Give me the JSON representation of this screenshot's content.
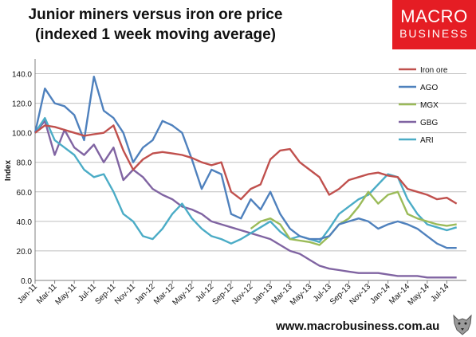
{
  "title_lines": [
    "Junior miners versus iron ore price",
    "(indexed 1 week moving average)"
  ],
  "logo": {
    "line1": "MACRO",
    "line2": "BUSINESS"
  },
  "footer": "www.macrobusiness.com.au",
  "colors": {
    "Iron ore": "#c0504d",
    "AGO": "#4f81bd",
    "MGX": "#9bbb59",
    "GBG": "#8064a2",
    "ARI": "#4bacc6",
    "logo_bg": "#e51d24"
  },
  "chart_data": {
    "type": "line",
    "title": "Junior miners versus iron ore price (indexed 1 week moving average)",
    "ylabel": "Index",
    "xlabel": "",
    "ylim": [
      0,
      150
    ],
    "yticks": [
      "0.0",
      "20.0",
      "40.0",
      "60.0",
      "80.0",
      "100.0",
      "120.0",
      "140.0"
    ],
    "ytick_values": [
      0,
      20,
      40,
      60,
      80,
      100,
      120,
      140
    ],
    "xlim": [
      "2011-01",
      "2014-09"
    ],
    "xticks": [
      "Jan-11",
      "Mar-11",
      "May-11",
      "Jul-11",
      "Sep-11",
      "Nov-11",
      "Jan-12",
      "Mar-12",
      "May-12",
      "Jul-12",
      "Sep-12",
      "Nov-12",
      "Jan-13",
      "Mar-13",
      "May-13",
      "Jul-13",
      "Sep-13",
      "Nov-13",
      "Jan-14",
      "Mar-14",
      "May-14",
      "Jul-14"
    ],
    "grid": true,
    "legend": "top-right",
    "series": [
      {
        "name": "Iron ore",
        "x": [
          "2011-01",
          "2011-02",
          "2011-03",
          "2011-04",
          "2011-05",
          "2011-06",
          "2011-07",
          "2011-08",
          "2011-09",
          "2011-10",
          "2011-11",
          "2011-12",
          "2012-01",
          "2012-02",
          "2012-03",
          "2012-04",
          "2012-05",
          "2012-06",
          "2012-07",
          "2012-08",
          "2012-09",
          "2012-10",
          "2012-11",
          "2012-12",
          "2013-01",
          "2013-02",
          "2013-03",
          "2013-04",
          "2013-05",
          "2013-06",
          "2013-07",
          "2013-08",
          "2013-09",
          "2013-10",
          "2013-11",
          "2013-12",
          "2014-01",
          "2014-02",
          "2014-03",
          "2014-04",
          "2014-05",
          "2014-06",
          "2014-07",
          "2014-08"
        ],
        "values": [
          100,
          105,
          104,
          102,
          100,
          98,
          99,
          100,
          105,
          88,
          75,
          82,
          86,
          87,
          86,
          85,
          83,
          80,
          78,
          80,
          60,
          55,
          62,
          65,
          82,
          88,
          89,
          80,
          75,
          70,
          58,
          62,
          68,
          70,
          72,
          73,
          71,
          70,
          62,
          60,
          58,
          55,
          56,
          52
        ]
      },
      {
        "name": "AGO",
        "x": [
          "2011-01",
          "2011-02",
          "2011-03",
          "2011-04",
          "2011-05",
          "2011-06",
          "2011-07",
          "2011-08",
          "2011-09",
          "2011-10",
          "2011-11",
          "2011-12",
          "2012-01",
          "2012-02",
          "2012-03",
          "2012-04",
          "2012-05",
          "2012-06",
          "2012-07",
          "2012-08",
          "2012-09",
          "2012-10",
          "2012-11",
          "2012-12",
          "2013-01",
          "2013-02",
          "2013-03",
          "2013-04",
          "2013-05",
          "2013-06",
          "2013-07",
          "2013-08",
          "2013-09",
          "2013-10",
          "2013-11",
          "2013-12",
          "2014-01",
          "2014-02",
          "2014-03",
          "2014-04",
          "2014-05",
          "2014-06",
          "2014-07",
          "2014-08"
        ],
        "values": [
          100,
          130,
          120,
          118,
          112,
          95,
          138,
          115,
          110,
          100,
          80,
          90,
          95,
          108,
          105,
          100,
          82,
          62,
          75,
          72,
          45,
          42,
          55,
          48,
          60,
          45,
          35,
          30,
          28,
          28,
          30,
          38,
          40,
          42,
          40,
          35,
          38,
          40,
          38,
          35,
          30,
          25,
          22,
          22
        ]
      },
      {
        "name": "MGX",
        "x": [
          "2012-11",
          "2012-12",
          "2013-01",
          "2013-02",
          "2013-03",
          "2013-04",
          "2013-05",
          "2013-06",
          "2013-07",
          "2013-08",
          "2013-09",
          "2013-10",
          "2013-11",
          "2013-12",
          "2014-01",
          "2014-02",
          "2014-03",
          "2014-04",
          "2014-05",
          "2014-06",
          "2014-07",
          "2014-08"
        ],
        "values": [
          35,
          40,
          42,
          38,
          28,
          27,
          26,
          24,
          30,
          38,
          42,
          50,
          60,
          52,
          58,
          60,
          45,
          42,
          40,
          38,
          37,
          38
        ]
      },
      {
        "name": "GBG",
        "x": [
          "2011-01",
          "2011-02",
          "2011-03",
          "2011-04",
          "2011-05",
          "2011-06",
          "2011-07",
          "2011-08",
          "2011-09",
          "2011-10",
          "2011-11",
          "2011-12",
          "2012-01",
          "2012-02",
          "2012-03",
          "2012-04",
          "2012-05",
          "2012-06",
          "2012-07",
          "2012-08",
          "2012-09",
          "2012-10",
          "2012-11",
          "2012-12",
          "2013-01",
          "2013-02",
          "2013-03",
          "2013-04",
          "2013-05",
          "2013-06",
          "2013-07",
          "2013-08",
          "2013-09",
          "2013-10",
          "2013-11",
          "2013-12",
          "2014-01",
          "2014-02",
          "2014-03",
          "2014-04",
          "2014-05",
          "2014-06",
          "2014-07",
          "2014-08"
        ],
        "values": [
          100,
          108,
          85,
          102,
          90,
          85,
          92,
          80,
          90,
          68,
          75,
          70,
          62,
          58,
          55,
          50,
          48,
          45,
          40,
          38,
          36,
          34,
          32,
          30,
          28,
          24,
          20,
          18,
          14,
          10,
          8,
          7,
          6,
          5,
          5,
          5,
          4,
          3,
          3,
          3,
          2,
          2,
          2,
          2
        ]
      },
      {
        "name": "ARI",
        "x": [
          "2011-01",
          "2011-02",
          "2011-03",
          "2011-04",
          "2011-05",
          "2011-06",
          "2011-07",
          "2011-08",
          "2011-09",
          "2011-10",
          "2011-11",
          "2011-12",
          "2012-01",
          "2012-02",
          "2012-03",
          "2012-04",
          "2012-05",
          "2012-06",
          "2012-07",
          "2012-08",
          "2012-09",
          "2012-10",
          "2012-11",
          "2012-12",
          "2013-01",
          "2013-02",
          "2013-03",
          "2013-04",
          "2013-05",
          "2013-06",
          "2013-07",
          "2013-08",
          "2013-09",
          "2013-10",
          "2013-11",
          "2013-12",
          "2014-01",
          "2014-02",
          "2014-03",
          "2014-04",
          "2014-05",
          "2014-06",
          "2014-07",
          "2014-08"
        ],
        "values": [
          100,
          110,
          95,
          90,
          85,
          75,
          70,
          72,
          60,
          45,
          40,
          30,
          28,
          35,
          45,
          52,
          42,
          35,
          30,
          28,
          25,
          28,
          32,
          36,
          40,
          33,
          28,
          30,
          28,
          26,
          35,
          45,
          50,
          55,
          58,
          65,
          72,
          70,
          55,
          45,
          38,
          36,
          34,
          36
        ]
      }
    ]
  }
}
